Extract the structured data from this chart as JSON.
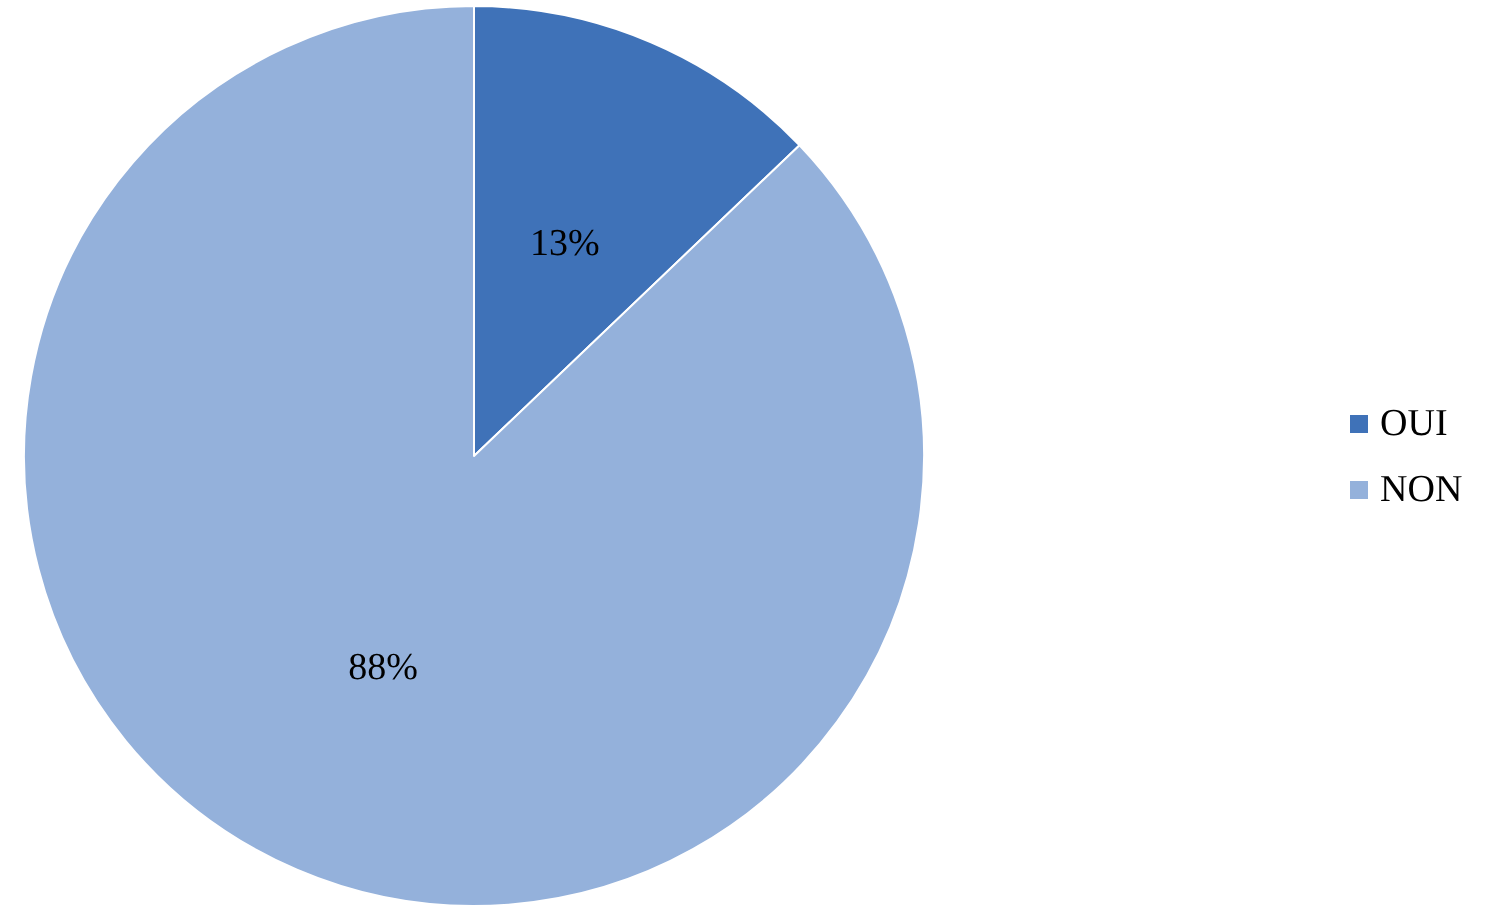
{
  "chart_data": {
    "type": "pie",
    "categories": [
      "OUI",
      "NON"
    ],
    "values": [
      13,
      88
    ],
    "colors": [
      "#3f72b8",
      "#94b1db"
    ],
    "value_labels": [
      "13%",
      "88%"
    ],
    "legend": "right"
  }
}
